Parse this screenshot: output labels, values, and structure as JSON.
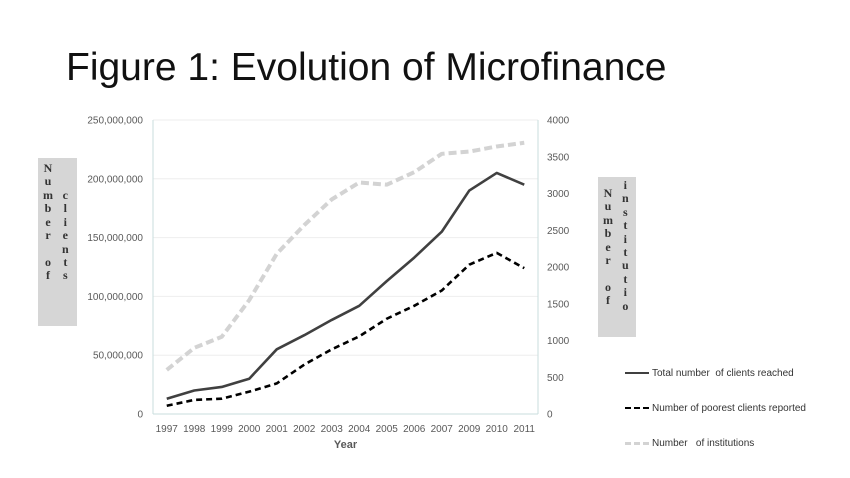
{
  "title": "Figure 1: Evolution of Microfinance",
  "y_left_label": "Number of clients",
  "y_left_cols": [
    [
      "N",
      "u",
      "m",
      "b",
      "e",
      "r",
      "",
      "o",
      "f"
    ],
    [
      "c",
      "l",
      "i",
      "e",
      "n",
      "t",
      "s"
    ]
  ],
  "y_right_label": "Number of institutio",
  "y_right_cols": [
    [
      "N",
      "u",
      "m",
      "b",
      "e",
      "r",
      "",
      "o",
      "f"
    ],
    [
      "i",
      "n",
      "s",
      "t",
      "i",
      "t",
      "u",
      "t",
      "i",
      "o"
    ]
  ],
  "chart_data": {
    "type": "line",
    "title": "Figure 1: Evolution of Microfinance",
    "xlabel": "Year",
    "ylabel": "Number of clients",
    "y2label": "Number of institutio",
    "categories": [
      "1997",
      "1998",
      "1999",
      "2000",
      "2001",
      "2002",
      "2003",
      "2004",
      "2005",
      "2006",
      "2007",
      "2009",
      "2010",
      "2011"
    ],
    "y_ticks": [
      "0",
      "50,000,000",
      "100,000,000",
      "150,000,000",
      "200,000,000",
      "250,000,000"
    ],
    "y2_ticks": [
      "0",
      "500",
      "1000",
      "1500",
      "2000",
      "2500",
      "3000",
      "3500",
      "4000"
    ],
    "ylim": [
      0,
      250000000
    ],
    "y2lim": [
      0,
      4000
    ],
    "grid": "horizontal",
    "legend_position": "right",
    "series": [
      {
        "name": "Total number  of clients reached",
        "axis": "left",
        "style": "solid",
        "color": "#404040",
        "values": [
          13000000,
          20000000,
          23000000,
          30000000,
          55000000,
          67000000,
          80000000,
          92000000,
          113000000,
          133000000,
          155000000,
          190000000,
          205000000,
          195000000
        ]
      },
      {
        "name": "Number of poorest clients reported",
        "axis": "left",
        "style": "dashed",
        "color": "#000000",
        "values": [
          7000000,
          12000000,
          13000000,
          19000000,
          26000000,
          42000000,
          55000000,
          66000000,
          81000000,
          92000000,
          105000000,
          127000000,
          137000000,
          124000000
        ]
      },
      {
        "name": "Number   of institutions",
        "axis": "right",
        "style": "dashed",
        "color": "#d3d3d3",
        "values": [
          600,
          900,
          1050,
          1550,
          2180,
          2570,
          2920,
          3150,
          3120,
          3290,
          3540,
          3570,
          3640,
          3690
        ]
      }
    ]
  }
}
